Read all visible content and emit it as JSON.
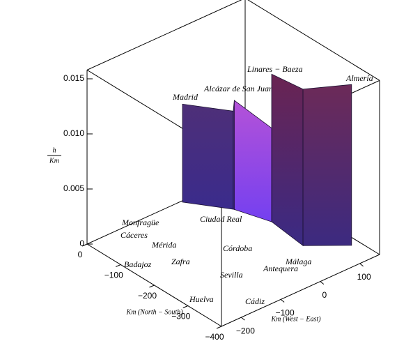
{
  "chart_data": {
    "type": "wall3d",
    "xlabel": "Km (North − South)",
    "ylabel": "Km (West − East)",
    "zlabel_num": "h",
    "zlabel_den": "Km",
    "xlim": [
      0,
      -400
    ],
    "ylim": [
      -250,
      150
    ],
    "zlim": [
      0,
      0.0158
    ],
    "xticks": [
      0,
      {
        "value": -100,
        "label": "−100"
      },
      {
        "value": -200,
        "label": "−200"
      },
      {
        "value": -300,
        "label": "−300"
      },
      {
        "value": -400,
        "label": "−400"
      }
    ],
    "yticks": [
      {
        "value": -200,
        "label": "−200"
      },
      {
        "value": -100,
        "label": "−100"
      },
      0,
      100
    ],
    "zticks": [
      0,
      0.005,
      {
        "value": 0.01,
        "label": "0.010"
      },
      0.015
    ],
    "places": [
      "Monfragüe",
      "Cáceres",
      "Mérida",
      "Badajoz",
      "Zafra",
      "Huelva",
      "Madrid",
      "Alcázar de San Juan",
      "Linares − Baeza",
      "Almería",
      "Ciudad Real",
      "Córdoba",
      "Sevilla",
      "Antequera",
      "Málaga",
      "Cádiz"
    ],
    "route": {
      "x": [
        -4,
        -88,
        -90,
        -172,
        -172,
        -278,
        -339
      ],
      "y": [
        -12,
        45,
        46,
        71,
        71,
        60,
        131
      ],
      "z": [
        0.0089,
        0.0089,
        0.0099,
        0.0085,
        0.0134,
        0.0142,
        0.0146
      ]
    },
    "panel_colors": [
      [
        "#4e2f78",
        "#3a2b8c"
      ],
      [
        "#4e2f78",
        "#3a2b8c"
      ],
      [
        "#b452d8",
        "#7440f0"
      ],
      [
        "#b452d8",
        "#7440f0"
      ],
      [
        "#6a2452",
        "#3a2a84"
      ],
      [
        "#6c2a58",
        "#3c2a80"
      ]
    ]
  }
}
